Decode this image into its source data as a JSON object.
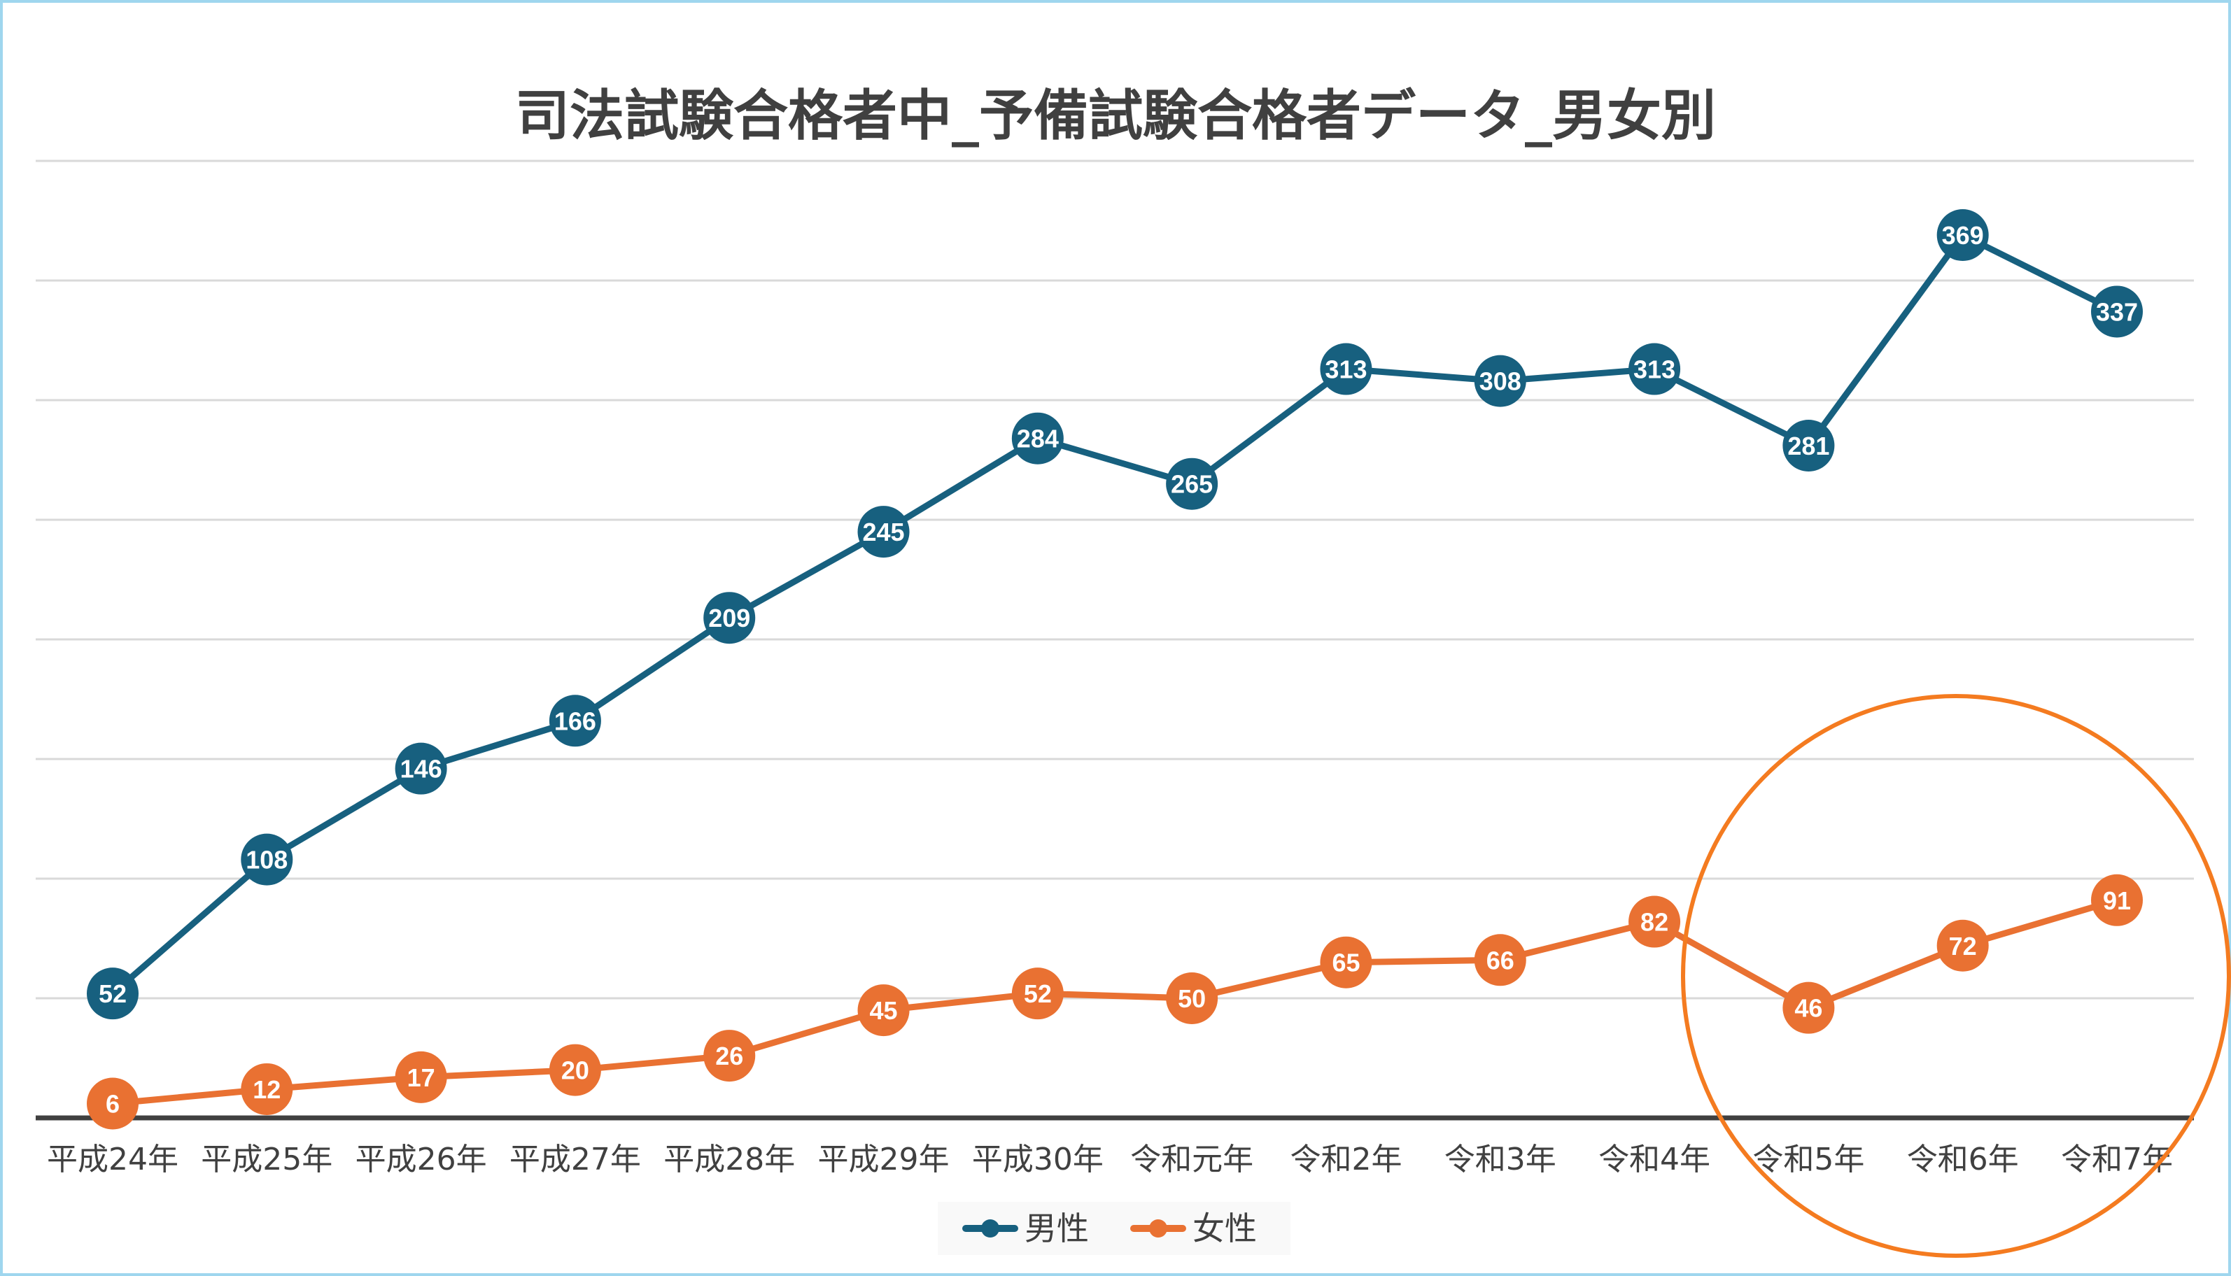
{
  "chart_data": {
    "type": "line",
    "title": "司法試験合格者中_予備試験合格者データ_男女別",
    "xlabel": "",
    "ylabel": "",
    "categories": [
      "平成24年",
      "平成25年",
      "平成26年",
      "平成27年",
      "平成28年",
      "平成29年",
      "平成30年",
      "令和元年",
      "令和2年",
      "令和3年",
      "令和4年",
      "令和5年",
      "令和6年",
      "令和7年"
    ],
    "ylim": [
      0,
      400
    ],
    "grid_step": 50,
    "grid": true,
    "legend_position": "bottom",
    "series": [
      {
        "name": "男性",
        "color": "#17607F",
        "values": [
          52,
          108,
          146,
          166,
          209,
          245,
          284,
          265,
          313,
          308,
          313,
          281,
          369,
          337
        ]
      },
      {
        "name": "女性",
        "color": "#E97132",
        "values": [
          6,
          12,
          17,
          20,
          26,
          45,
          52,
          50,
          65,
          66,
          82,
          46,
          72,
          91
        ]
      }
    ],
    "annotation": {
      "shape": "circle",
      "color": "#F47B20",
      "highlights": [
        "令和5年",
        "令和6年",
        "令和7年"
      ]
    }
  }
}
